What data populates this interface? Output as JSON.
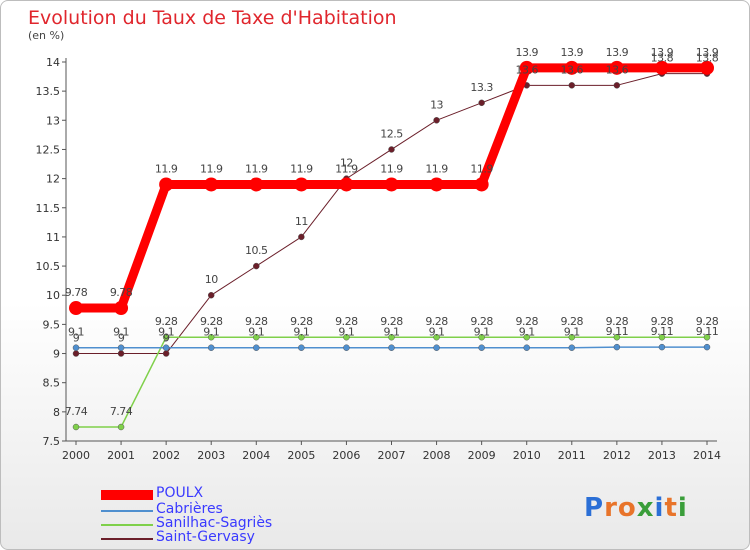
{
  "title": "Evolution du Taux de Taxe d'Habitation",
  "unit": "(en %)",
  "brand": "Proxiti",
  "chart_data": {
    "type": "line",
    "x": [
      "2000",
      "2001",
      "2002",
      "2003",
      "2004",
      "2005",
      "2006",
      "2007",
      "2008",
      "2009",
      "2010",
      "2011",
      "2012",
      "2013",
      "2014"
    ],
    "ylim": [
      7.5,
      14
    ],
    "yticks": [
      "7.5",
      "8",
      "8.5",
      "9",
      "9.5",
      "10",
      "10.5",
      "11",
      "11.5",
      "12",
      "12.5",
      "13",
      "13.5",
      "14"
    ],
    "grid": false,
    "legend_position": "bottom-left",
    "series": [
      {
        "name": "POULX",
        "color": "#ff0000",
        "values": [
          9.78,
          9.78,
          11.9,
          11.9,
          11.9,
          11.9,
          11.9,
          11.9,
          11.9,
          11.9,
          13.9,
          13.9,
          13.9,
          13.9,
          13.9
        ],
        "labels": [
          "9.78",
          "9.78",
          "11.9",
          "11.9",
          "11.9",
          "11.9",
          "11.9",
          "11.9",
          "11.9",
          "11.9",
          "13.9",
          "13.9",
          "13.9",
          "13.9",
          "13.9"
        ]
      },
      {
        "name": "Cabrières",
        "color": "#4f8fcf",
        "values": [
          9.1,
          9.1,
          9.1,
          9.1,
          9.1,
          9.1,
          9.1,
          9.1,
          9.1,
          9.1,
          9.1,
          9.1,
          9.11,
          9.11,
          9.11
        ],
        "labels": [
          "9.1",
          "9.1",
          "9.1",
          "9.1",
          "9.1",
          "9.1",
          "9.1",
          "9.1",
          "9.1",
          "9.1",
          "9.1",
          "9.1",
          "9.11",
          "9.11",
          "9.11"
        ]
      },
      {
        "name": "Sanilhac-Sagriès",
        "color": "#7fd04a",
        "values": [
          7.74,
          7.74,
          9.28,
          9.28,
          9.28,
          9.28,
          9.28,
          9.28,
          9.28,
          9.28,
          9.28,
          9.28,
          9.28,
          9.28,
          9.28
        ],
        "labels": [
          "7.74",
          "7.74",
          "9.28",
          "9.28",
          "9.28",
          "9.28",
          "9.28",
          "9.28",
          "9.28",
          "9.28",
          "9.28",
          "9.28",
          "9.28",
          "9.28",
          "9.28"
        ]
      },
      {
        "name": "Saint-Gervasy",
        "color": "#6b1f2a",
        "values": [
          9,
          9,
          9,
          10,
          10.5,
          11,
          12,
          12.5,
          13,
          13.3,
          13.6,
          13.6,
          13.6,
          13.8,
          13.8
        ],
        "labels": [
          "9",
          "9",
          "9",
          "10",
          "10.5",
          "11",
          "12",
          "12.5",
          "13",
          "13.3",
          "13.6",
          "13.6",
          "13.6",
          "13.8",
          "13.8"
        ]
      }
    ]
  }
}
